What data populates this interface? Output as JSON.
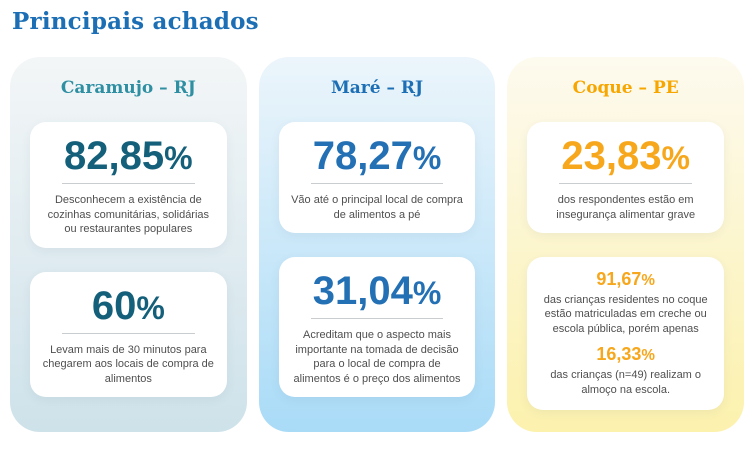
{
  "page": {
    "title": "Principais achados",
    "background": "#ffffff",
    "title_color": "#1d6fb5",
    "description_color": "#4f4f4f",
    "divider_color": "#c9cdd0"
  },
  "cards": [
    {
      "title": "Caramujo – RJ",
      "colors": {
        "accent": "#2e8fa2",
        "number": "#145f79",
        "bg_top": "#f3f6f7",
        "bg_bottom": "#cee2ea"
      },
      "boxes": [
        {
          "stats": [
            {
              "value": "82,85",
              "unit": "%",
              "description": "Desconhecem a existência de cozinhas comunitárias, solidárias ou restaurantes populares"
            }
          ]
        },
        {
          "stats": [
            {
              "value": "60",
              "unit": "%",
              "description": "Levam mais de 30 minutos para chegarem aos locais de compra de alimentos"
            }
          ]
        }
      ]
    },
    {
      "title": "Maré – RJ",
      "colors": {
        "accent": "#1d6fb5",
        "number": "#2470b4",
        "bg_top": "#ecf5fb",
        "bg_bottom": "#a9dbf7"
      },
      "boxes": [
        {
          "stats": [
            {
              "value": "78,27",
              "unit": "%",
              "description": "Vão até o principal local de compra de alimentos a pé"
            }
          ]
        },
        {
          "stats": [
            {
              "value": "31,04",
              "unit": "%",
              "description": "Acreditam que o aspecto mais importante na tomada de decisão para o local de compra de alimentos é o preço dos alimentos"
            }
          ]
        }
      ]
    },
    {
      "title": "Coque – PE",
      "colors": {
        "accent": "#f7a600",
        "number": "#f7a71c",
        "bg_top": "#fdfaef",
        "bg_bottom": "#fcf1ad"
      },
      "boxes": [
        {
          "stats": [
            {
              "value": "23,83",
              "unit": "%",
              "description": "dos respondentes estão em insegurança alimentar grave"
            }
          ]
        },
        {
          "stats": [
            {
              "value": "91,67",
              "unit": "%",
              "description": "das crianças residentes no coque estão matriculadas em creche ou escola pública, porém apenas"
            },
            {
              "value": "16,33",
              "unit": "%",
              "description": "das crianças (n=49) realizam o almoço na escola."
            }
          ]
        }
      ]
    }
  ]
}
